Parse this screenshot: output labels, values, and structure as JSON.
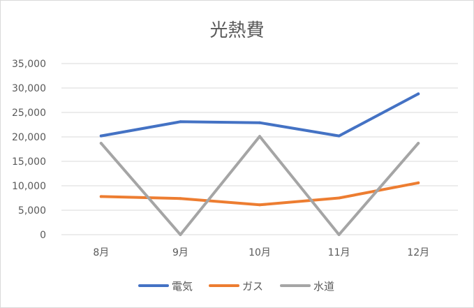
{
  "chart_data": {
    "type": "line",
    "title": "光熱費",
    "categories": [
      "8月",
      "9月",
      "10月",
      "11月",
      "12月"
    ],
    "ylim": [
      0,
      35000
    ],
    "yticks": [
      0,
      5000,
      10000,
      15000,
      20000,
      25000,
      30000,
      35000
    ],
    "ytick_labels": [
      "0",
      "5,000",
      "10,000",
      "15,000",
      "20,000",
      "25,000",
      "30,000",
      "35,000"
    ],
    "grid": true,
    "legend_position": "bottom",
    "series": [
      {
        "name": "電気",
        "color": "#4472c4",
        "values": [
          20200,
          23100,
          22900,
          20200,
          28800
        ]
      },
      {
        "name": "ガス",
        "color": "#ed7d31",
        "values": [
          7800,
          7400,
          6100,
          7500,
          10600
        ]
      },
      {
        "name": "水道",
        "color": "#a5a5a5",
        "values": [
          18700,
          0,
          20100,
          0,
          18700
        ]
      }
    ]
  }
}
